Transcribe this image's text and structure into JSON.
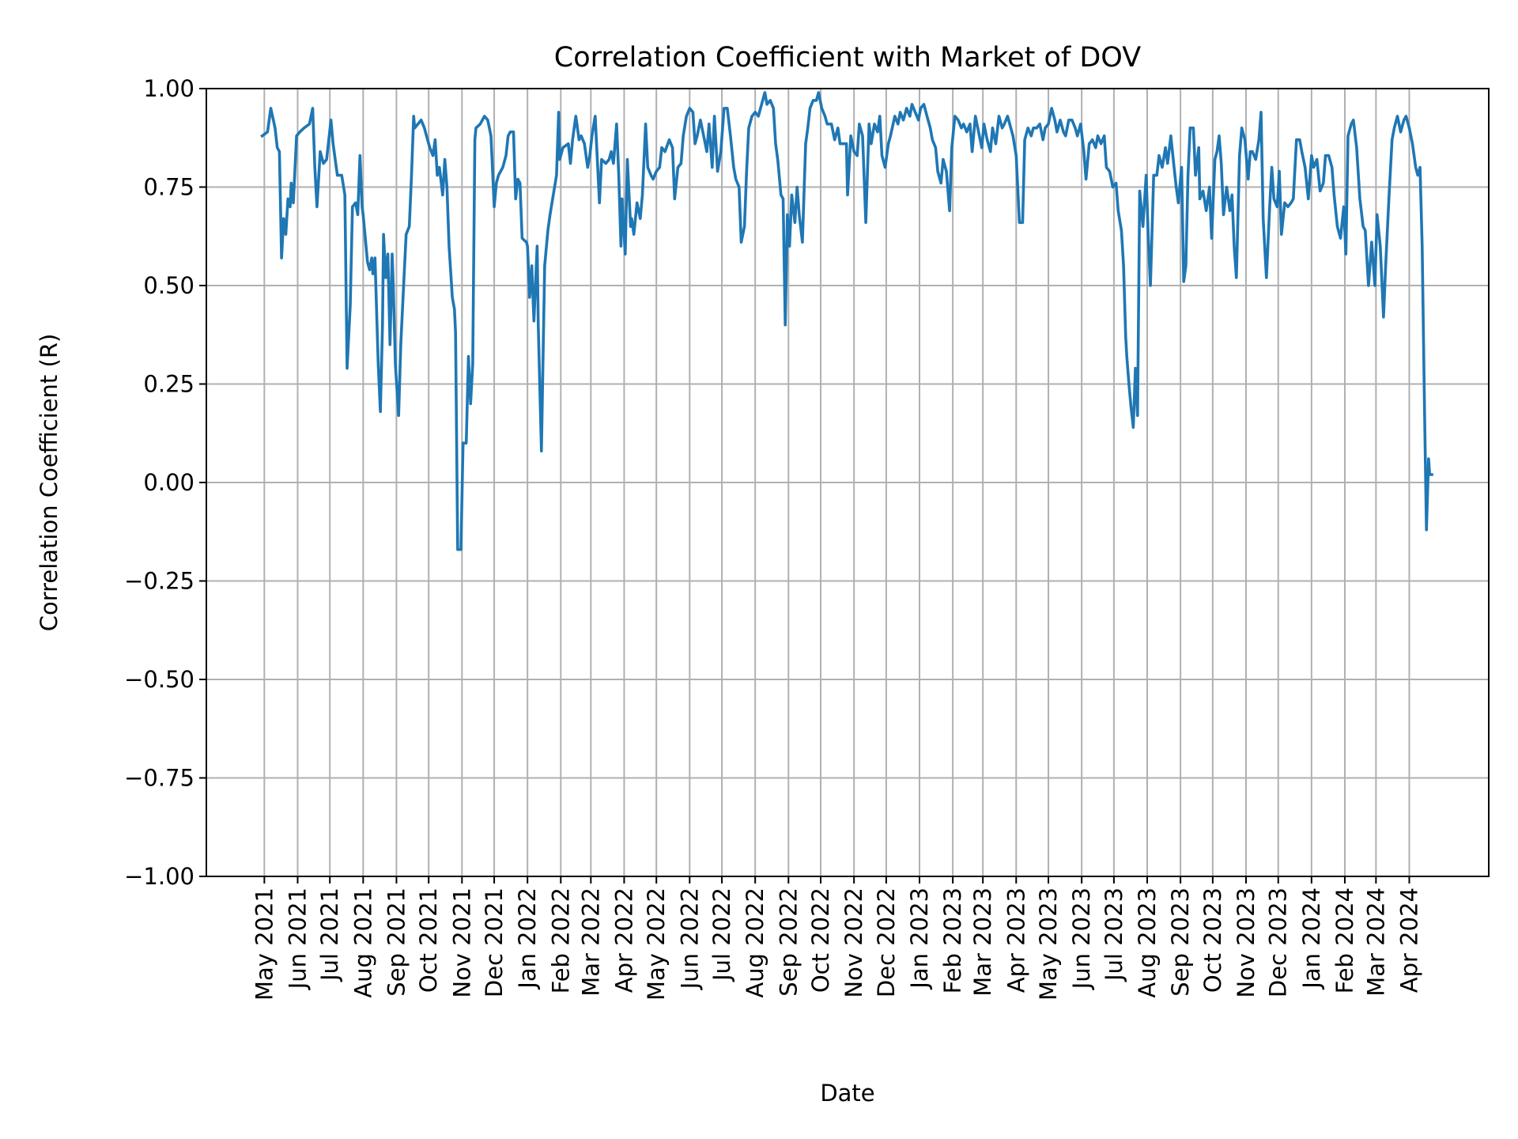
{
  "chart_data": {
    "type": "line",
    "title": "Correlation Coefficient with Market of DOV",
    "xlabel": "Date",
    "ylabel": "Correlation Coefficient (R)",
    "xlim": [
      "2021-03-08",
      "2024-06-14"
    ],
    "ylim": [
      -1.0,
      1.0
    ],
    "grid": true,
    "line_color": "#1f77b4",
    "x_ticks": [
      "2021-05-01",
      "2021-06-01",
      "2021-07-01",
      "2021-08-01",
      "2021-09-01",
      "2021-10-01",
      "2021-11-01",
      "2021-12-01",
      "2022-01-01",
      "2022-02-01",
      "2022-03-01",
      "2022-04-01",
      "2022-05-01",
      "2022-06-01",
      "2022-07-01",
      "2022-08-01",
      "2022-09-01",
      "2022-10-01",
      "2022-11-01",
      "2022-12-01",
      "2023-01-01",
      "2023-02-01",
      "2023-03-01",
      "2023-04-01",
      "2023-05-01",
      "2023-06-01",
      "2023-07-01",
      "2023-08-01",
      "2023-09-01",
      "2023-10-01",
      "2023-11-01",
      "2023-12-01",
      "2024-01-01",
      "2024-02-01",
      "2024-03-01",
      "2024-04-01"
    ],
    "x_tick_labels": [
      "May 2021",
      "Jun 2021",
      "Jul 2021",
      "Aug 2021",
      "Sep 2021",
      "Oct 2021",
      "Nov 2021",
      "Dec 2021",
      "Jan 2022",
      "Feb 2022",
      "Mar 2022",
      "Apr 2022",
      "May 2022",
      "Jun 2022",
      "Jul 2022",
      "Aug 2022",
      "Sep 2022",
      "Oct 2022",
      "Nov 2022",
      "Dec 2022",
      "Jan 2023",
      "Feb 2023",
      "Mar 2023",
      "Apr 2023",
      "May 2023",
      "Jun 2023",
      "Jul 2023",
      "Aug 2023",
      "Sep 2023",
      "Oct 2023",
      "Nov 2023",
      "Dec 2023",
      "Jan 2024",
      "Feb 2024",
      "Mar 2024",
      "Apr 2024"
    ],
    "y_ticks": [
      1.0,
      0.75,
      0.5,
      0.25,
      0.0,
      -0.25,
      -0.5,
      -0.75,
      -1.0
    ],
    "y_tick_labels": [
      "1.00",
      "0.75",
      "0.50",
      "0.25",
      "0.00",
      "−0.25",
      "−0.50",
      "−0.75",
      "−1.00"
    ],
    "series": [
      {
        "x": [
          "2021-04-29",
          "2021-05-04",
          "2021-05-07",
          "2021-05-11",
          "2021-05-13",
          "2021-05-15",
          "2021-05-17",
          "2021-05-19",
          "2021-05-21",
          "2021-05-23",
          "2021-05-25",
          "2021-05-26",
          "2021-05-28",
          "2021-05-31",
          "2021-06-03",
          "2021-06-07",
          "2021-06-12",
          "2021-06-15",
          "2021-06-17",
          "2021-06-19",
          "2021-06-22",
          "2021-06-25",
          "2021-06-28",
          "2021-07-02",
          "2021-07-04",
          "2021-07-08",
          "2021-07-12",
          "2021-07-15",
          "2021-07-17",
          "2021-07-20",
          "2021-07-22",
          "2021-07-25",
          "2021-07-27",
          "2021-07-29",
          "2021-07-31",
          "2021-08-01",
          "2021-08-05",
          "2021-08-07",
          "2021-08-09",
          "2021-08-10",
          "2021-08-12",
          "2021-08-15",
          "2021-08-17",
          "2021-08-19",
          "2021-08-20",
          "2021-08-22",
          "2021-08-24",
          "2021-08-26",
          "2021-08-28",
          "2021-08-29",
          "2021-08-31",
          "2021-09-03",
          "2021-09-05",
          "2021-09-08",
          "2021-09-10",
          "2021-09-13",
          "2021-09-15",
          "2021-09-17",
          "2021-09-18",
          "2021-09-21",
          "2021-09-24",
          "2021-09-27",
          "2021-09-28",
          "2021-10-02",
          "2021-10-05",
          "2021-10-07",
          "2021-10-09",
          "2021-10-11",
          "2021-10-14",
          "2021-10-16",
          "2021-10-18",
          "2021-10-20",
          "2021-10-23",
          "2021-10-25",
          "2021-10-26",
          "2021-10-28",
          "2021-10-31",
          "2021-11-02",
          "2021-11-05",
          "2021-11-07",
          "2021-11-09",
          "2021-11-11",
          "2021-11-13",
          "2021-11-14",
          "2021-11-18",
          "2021-11-22",
          "2021-11-25",
          "2021-11-28",
          "2021-12-01",
          "2021-12-03",
          "2021-12-05",
          "2021-12-09",
          "2021-12-12",
          "2021-12-14",
          "2021-12-16",
          "2021-12-19",
          "2021-12-21",
          "2021-12-23",
          "2021-12-25",
          "2021-12-27",
          "2021-12-31",
          "2022-01-01",
          "2022-01-03",
          "2022-01-05",
          "2022-01-07",
          "2022-01-10",
          "2022-01-11",
          "2022-01-14",
          "2022-01-17",
          "2022-01-20",
          "2022-01-22",
          "2022-01-25",
          "2022-01-28",
          "2022-01-30",
          "2022-01-31",
          "2022-02-03",
          "2022-02-08",
          "2022-02-10",
          "2022-02-12",
          "2022-02-15",
          "2022-02-18",
          "2022-02-20",
          "2022-02-23",
          "2022-02-26",
          "2022-02-28",
          "2022-03-02",
          "2022-03-05",
          "2022-03-07",
          "2022-03-09",
          "2022-03-11",
          "2022-03-15",
          "2022-03-18",
          "2022-03-20",
          "2022-03-22",
          "2022-03-25",
          "2022-03-27",
          "2022-03-29",
          "2022-03-30",
          "2022-04-02",
          "2022-04-04",
          "2022-04-07",
          "2022-04-08",
          "2022-04-10",
          "2022-04-13",
          "2022-04-16",
          "2022-04-18",
          "2022-04-21",
          "2022-04-23",
          "2022-04-26",
          "2022-04-28",
          "2022-05-01",
          "2022-05-04",
          "2022-05-06",
          "2022-05-09",
          "2022-05-13",
          "2022-05-16",
          "2022-05-18",
          "2022-05-21",
          "2022-05-24",
          "2022-05-26",
          "2022-05-29",
          "2022-06-01",
          "2022-06-04",
          "2022-06-06",
          "2022-06-08",
          "2022-06-11",
          "2022-06-14",
          "2022-06-17",
          "2022-06-19",
          "2022-06-22",
          "2022-06-24",
          "2022-06-27",
          "2022-06-30",
          "2022-07-03",
          "2022-07-06",
          "2022-07-09",
          "2022-07-12",
          "2022-07-14",
          "2022-07-17",
          "2022-07-19",
          "2022-07-22",
          "2022-07-24",
          "2022-07-26",
          "2022-07-29",
          "2022-08-01",
          "2022-08-04",
          "2022-08-07",
          "2022-08-10",
          "2022-08-12",
          "2022-08-15",
          "2022-08-18",
          "2022-08-20",
          "2022-08-22",
          "2022-08-25",
          "2022-08-27",
          "2022-08-29",
          "2022-08-31",
          "2022-09-02",
          "2022-09-04",
          "2022-09-07",
          "2022-09-09",
          "2022-09-11",
          "2022-09-14",
          "2022-09-17",
          "2022-09-19",
          "2022-09-21",
          "2022-09-24",
          "2022-09-27",
          "2022-09-29",
          "2022-10-02",
          "2022-10-05",
          "2022-10-07",
          "2022-10-11",
          "2022-10-14",
          "2022-10-17",
          "2022-10-19",
          "2022-10-22",
          "2022-10-25",
          "2022-10-26",
          "2022-10-29",
          "2022-11-01",
          "2022-11-04",
          "2022-11-06",
          "2022-11-09",
          "2022-11-12",
          "2022-11-15",
          "2022-11-17",
          "2022-11-20",
          "2022-11-23",
          "2022-11-25",
          "2022-11-27",
          "2022-11-30",
          "2022-12-03",
          "2022-12-05",
          "2022-12-09",
          "2022-12-12",
          "2022-12-14",
          "2022-12-17",
          "2022-12-20",
          "2022-12-23",
          "2022-12-25",
          "2022-12-28",
          "2022-12-31",
          "2023-01-02",
          "2023-01-05",
          "2023-01-08",
          "2023-01-11",
          "2023-01-13",
          "2023-01-16",
          "2023-01-18",
          "2023-01-21",
          "2023-01-23",
          "2023-01-26",
          "2023-01-29",
          "2023-01-31",
          "2023-02-03",
          "2023-02-06",
          "2023-02-09",
          "2023-02-11",
          "2023-02-14",
          "2023-02-17",
          "2023-02-19",
          "2023-02-22",
          "2023-02-25",
          "2023-02-28",
          "2023-03-02",
          "2023-03-05",
          "2023-03-08",
          "2023-03-10",
          "2023-03-13",
          "2023-03-16",
          "2023-03-19",
          "2023-03-21",
          "2023-03-24",
          "2023-03-27",
          "2023-03-29",
          "2023-04-01",
          "2023-04-04",
          "2023-04-07",
          "2023-04-09",
          "2023-04-12",
          "2023-04-15",
          "2023-04-17",
          "2023-04-20",
          "2023-04-23",
          "2023-04-26",
          "2023-04-28",
          "2023-05-01",
          "2023-05-04",
          "2023-05-07",
          "2023-05-09",
          "2023-05-12",
          "2023-05-15",
          "2023-05-17",
          "2023-05-20",
          "2023-05-23",
          "2023-05-26",
          "2023-05-28",
          "2023-05-31",
          "2023-06-03",
          "2023-06-05",
          "2023-06-08",
          "2023-06-11",
          "2023-06-14",
          "2023-06-16",
          "2023-06-19",
          "2023-06-22",
          "2023-06-24",
          "2023-06-27",
          "2023-06-30",
          "2023-07-03",
          "2023-07-05",
          "2023-07-08",
          "2023-07-10",
          "2023-07-12",
          "2023-07-13",
          "2023-07-15",
          "2023-07-17",
          "2023-07-19",
          "2023-07-21",
          "2023-07-23",
          "2023-07-25",
          "2023-07-28",
          "2023-07-31",
          "2023-08-02",
          "2023-08-04",
          "2023-08-07",
          "2023-08-10",
          "2023-08-12",
          "2023-08-15",
          "2023-08-18",
          "2023-08-20",
          "2023-08-23",
          "2023-08-26",
          "2023-08-28",
          "2023-08-30",
          "2023-09-02",
          "2023-09-04",
          "2023-09-06",
          "2023-09-08",
          "2023-09-10",
          "2023-09-13",
          "2023-09-15",
          "2023-09-18",
          "2023-09-19",
          "2023-09-22",
          "2023-09-25",
          "2023-09-28",
          "2023-09-30",
          "2023-10-03",
          "2023-10-05",
          "2023-10-07",
          "2023-10-09",
          "2023-10-11",
          "2023-10-14",
          "2023-10-17",
          "2023-10-19",
          "2023-10-21",
          "2023-10-23",
          "2023-10-26",
          "2023-10-28",
          "2023-10-31",
          "2023-11-03",
          "2023-11-05",
          "2023-11-07",
          "2023-11-10",
          "2023-11-13",
          "2023-11-15",
          "2023-11-17",
          "2023-11-20",
          "2023-11-23",
          "2023-11-25",
          "2023-11-27",
          "2023-11-30",
          "2023-12-02",
          "2023-12-04",
          "2023-12-07",
          "2023-12-10",
          "2023-12-13",
          "2023-12-15",
          "2023-12-18",
          "2023-12-21",
          "2023-12-23",
          "2023-12-26",
          "2023-12-29",
          "2024-01-01",
          "2024-01-03",
          "2024-01-06",
          "2024-01-09",
          "2024-01-12",
          "2024-01-14",
          "2024-01-17",
          "2024-01-20",
          "2024-01-22",
          "2024-01-25",
          "2024-01-28",
          "2024-01-31",
          "2024-02-02",
          "2024-02-04",
          "2024-02-07",
          "2024-02-09",
          "2024-02-12",
          "2024-02-15",
          "2024-02-18",
          "2024-02-20",
          "2024-02-23",
          "2024-02-26",
          "2024-02-29",
          "2024-03-02",
          "2024-03-05",
          "2024-03-08",
          "2024-03-10",
          "2024-03-13",
          "2024-03-16",
          "2024-03-18",
          "2024-03-21",
          "2024-03-24",
          "2024-03-27",
          "2024-03-29",
          "2024-04-01",
          "2024-04-04",
          "2024-04-07",
          "2024-04-09",
          "2024-04-11",
          "2024-04-13",
          "2024-04-15",
          "2024-04-17",
          "2024-04-19",
          "2024-04-20",
          "2024-04-22"
        ],
        "y": [
          0.88,
          0.89,
          0.95,
          0.9,
          0.85,
          0.84,
          0.57,
          0.67,
          0.63,
          0.72,
          0.7,
          0.76,
          0.71,
          0.88,
          0.89,
          0.9,
          0.91,
          0.95,
          0.8,
          0.7,
          0.84,
          0.81,
          0.82,
          0.92,
          0.86,
          0.78,
          0.78,
          0.73,
          0.29,
          0.45,
          0.7,
          0.71,
          0.68,
          0.83,
          0.7,
          0.68,
          0.56,
          0.54,
          0.57,
          0.53,
          0.57,
          0.3,
          0.18,
          0.4,
          0.63,
          0.52,
          0.58,
          0.35,
          0.58,
          0.5,
          0.3,
          0.17,
          0.35,
          0.52,
          0.63,
          0.65,
          0.78,
          0.93,
          0.9,
          0.91,
          0.92,
          0.9,
          0.89,
          0.85,
          0.83,
          0.87,
          0.78,
          0.8,
          0.73,
          0.82,
          0.75,
          0.6,
          0.47,
          0.44,
          0.38,
          -0.17,
          -0.17,
          0.1,
          0.1,
          0.32,
          0.2,
          0.3,
          0.87,
          0.9,
          0.91,
          0.93,
          0.92,
          0.88,
          0.7,
          0.76,
          0.78,
          0.8,
          0.83,
          0.88,
          0.89,
          0.89,
          0.72,
          0.77,
          0.76,
          0.62,
          0.61,
          0.6,
          0.47,
          0.55,
          0.41,
          0.6,
          0.4,
          0.08,
          0.55,
          0.64,
          0.68,
          0.73,
          0.78,
          0.94,
          0.82,
          0.85,
          0.86,
          0.81,
          0.87,
          0.93,
          0.87,
          0.88,
          0.86,
          0.8,
          0.83,
          0.88,
          0.93,
          0.82,
          0.71,
          0.82,
          0.81,
          0.82,
          0.84,
          0.81,
          0.91,
          0.78,
          0.6,
          0.72,
          0.58,
          0.82,
          0.65,
          0.67,
          0.63,
          0.71,
          0.67,
          0.73,
          0.91,
          0.8,
          0.78,
          0.77,
          0.79,
          0.8,
          0.85,
          0.84,
          0.87,
          0.85,
          0.72,
          0.8,
          0.81,
          0.88,
          0.93,
          0.95,
          0.94,
          0.86,
          0.88,
          0.92,
          0.88,
          0.84,
          0.91,
          0.8,
          0.93,
          0.79,
          0.84,
          0.95,
          0.95,
          0.88,
          0.8,
          0.77,
          0.75,
          0.61,
          0.65,
          0.79,
          0.9,
          0.93,
          0.94,
          0.93,
          0.96,
          0.99,
          0.96,
          0.97,
          0.95,
          0.86,
          0.82,
          0.73,
          0.72,
          0.4,
          0.68,
          0.6,
          0.73,
          0.66,
          0.75,
          0.68,
          0.61,
          0.86,
          0.9,
          0.95,
          0.97,
          0.97,
          0.99,
          0.95,
          0.93,
          0.91,
          0.91,
          0.87,
          0.9,
          0.86,
          0.86,
          0.86,
          0.73,
          0.88,
          0.84,
          0.83,
          0.91,
          0.88,
          0.66,
          0.91,
          0.86,
          0.91,
          0.89,
          0.93,
          0.83,
          0.8,
          0.86,
          0.88,
          0.93,
          0.91,
          0.94,
          0.92,
          0.95,
          0.93,
          0.96,
          0.94,
          0.92,
          0.95,
          0.96,
          0.93,
          0.9,
          0.87,
          0.85,
          0.79,
          0.76,
          0.82,
          0.79,
          0.69,
          0.85,
          0.93,
          0.92,
          0.9,
          0.91,
          0.89,
          0.91,
          0.84,
          0.93,
          0.89,
          0.85,
          0.91,
          0.87,
          0.84,
          0.9,
          0.86,
          0.93,
          0.9,
          0.91,
          0.93,
          0.9,
          0.88,
          0.83,
          0.66,
          0.66,
          0.87,
          0.9,
          0.88,
          0.9,
          0.9,
          0.91,
          0.87,
          0.9,
          0.91,
          0.95,
          0.92,
          0.89,
          0.92,
          0.89,
          0.88,
          0.92,
          0.92,
          0.9,
          0.88,
          0.91,
          0.84,
          0.77,
          0.86,
          0.87,
          0.85,
          0.88,
          0.86,
          0.88,
          0.8,
          0.79,
          0.75,
          0.76,
          0.69,
          0.64,
          0.55,
          0.37,
          0.32,
          0.25,
          0.19,
          0.14,
          0.29,
          0.17,
          0.74,
          0.65,
          0.78,
          0.62,
          0.5,
          0.78,
          0.78,
          0.83,
          0.8,
          0.85,
          0.81,
          0.88,
          0.8,
          0.75,
          0.71,
          0.8,
          0.51,
          0.55,
          0.78,
          0.9,
          0.9,
          0.78,
          0.85,
          0.72,
          0.74,
          0.69,
          0.75,
          0.62,
          0.82,
          0.84,
          0.88,
          0.81,
          0.68,
          0.75,
          0.69,
          0.73,
          0.6,
          0.52,
          0.83,
          0.9,
          0.87,
          0.77,
          0.84,
          0.84,
          0.82,
          0.87,
          0.94,
          0.67,
          0.52,
          0.7,
          0.8,
          0.72,
          0.7,
          0.79,
          0.63,
          0.71,
          0.7,
          0.71,
          0.72,
          0.87,
          0.87,
          0.84,
          0.8,
          0.72,
          0.83,
          0.8,
          0.82,
          0.74,
          0.76,
          0.83,
          0.83,
          0.8,
          0.73,
          0.65,
          0.62,
          0.7,
          0.58,
          0.88,
          0.91,
          0.92,
          0.85,
          0.72,
          0.65,
          0.64,
          0.5,
          0.61,
          0.5,
          0.68,
          0.6,
          0.42,
          0.55,
          0.72,
          0.87,
          0.9,
          0.93,
          0.89,
          0.92,
          0.93,
          0.9,
          0.86,
          0.8,
          0.78,
          0.8,
          0.6,
          0.22,
          -0.12,
          0.06,
          0.02,
          0.02
        ]
      }
    ]
  }
}
